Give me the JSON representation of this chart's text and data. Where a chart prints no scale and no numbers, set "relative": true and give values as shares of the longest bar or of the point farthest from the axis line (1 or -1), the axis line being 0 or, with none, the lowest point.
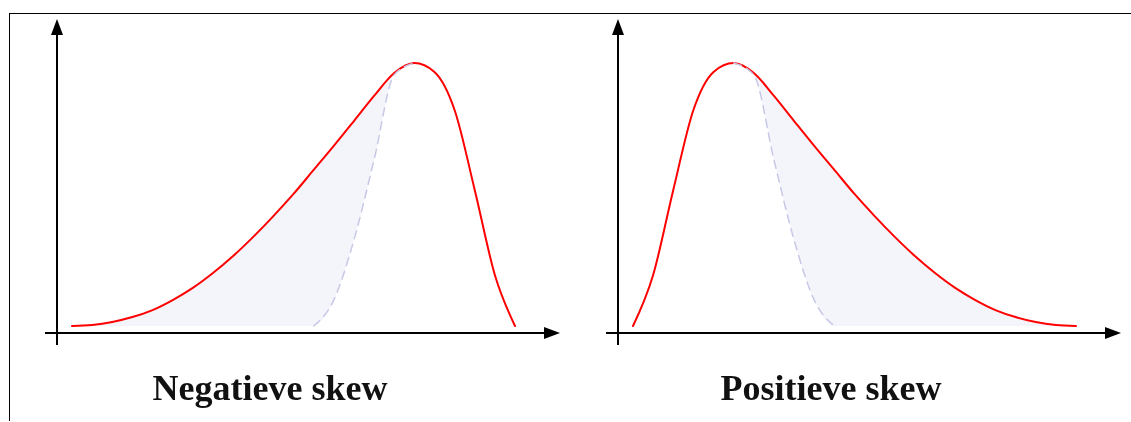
{
  "chart_data": [
    {
      "type": "line",
      "title": "Negatieve skew",
      "relative": true,
      "categories": [
        null,
        null,
        null,
        null,
        null,
        null,
        null,
        null,
        null,
        null,
        null,
        null,
        null,
        null,
        null,
        null,
        null,
        null,
        null,
        null,
        null,
        null,
        null
      ],
      "series": [
        {
          "color": "#ff0000",
          "line_style": "solid",
          "values": [
            0.026,
            0.03,
            0.041,
            0.059,
            0.085,
            0.122,
            0.167,
            0.222,
            0.285,
            0.356,
            0.433,
            0.515,
            0.604,
            0.693,
            0.785,
            0.878,
            0.963,
            1,
            0.967,
            0.826,
            0.53,
            0.215,
            0.026
          ],
          "lower": [
            0.026,
            0.026,
            0.026,
            0.026,
            0.026,
            0.026,
            0.026,
            0.026,
            0.026,
            0.026,
            0.026,
            0.026,
            0.026,
            0.122,
            0.344,
            0.641,
            0.956,
            1,
            null,
            null,
            null,
            null,
            null
          ],
          "upper": [
            0.026,
            0.03,
            0.041,
            0.059,
            0.085,
            0.122,
            0.167,
            0.222,
            0.285,
            0.356,
            0.433,
            0.515,
            0.604,
            0.693,
            0.785,
            0.878,
            0.963,
            1,
            null,
            null,
            null,
            null,
            null
          ]
        },
        {
          "color": "#c8c8e6",
          "line_style": "dashed",
          "values": [
            null,
            null,
            null,
            null,
            null,
            null,
            null,
            null,
            null,
            null,
            null,
            null,
            0.026,
            0.122,
            0.344,
            0.641,
            0.956,
            1,
            null,
            null,
            null,
            null,
            null
          ]
        }
      ]
    },
    {
      "type": "line",
      "title": "Positieve skew",
      "relative": true,
      "categories": [
        null,
        null,
        null,
        null,
        null,
        null,
        null,
        null,
        null,
        null,
        null,
        null,
        null,
        null,
        null,
        null,
        null,
        null,
        null,
        null,
        null,
        null,
        null
      ],
      "series": [
        {
          "color": "#ff0000",
          "line_style": "solid",
          "values": [
            0.026,
            0.215,
            0.53,
            0.826,
            0.967,
            1,
            0.963,
            0.878,
            0.785,
            0.693,
            0.604,
            0.515,
            0.433,
            0.356,
            0.285,
            0.222,
            0.167,
            0.122,
            0.085,
            0.059,
            0.041,
            0.03,
            0.026
          ],
          "lower": [
            null,
            null,
            null,
            null,
            null,
            1,
            0.956,
            0.641,
            0.344,
            0.122,
            0.026,
            0.026,
            0.026,
            0.026,
            0.026,
            0.026,
            0.026,
            0.026,
            0.026,
            0.026,
            0.026,
            0.026,
            0.026
          ],
          "upper": [
            null,
            null,
            null,
            null,
            null,
            1,
            0.963,
            0.878,
            0.785,
            0.693,
            0.604,
            0.515,
            0.433,
            0.356,
            0.285,
            0.222,
            0.167,
            0.122,
            0.085,
            0.059,
            0.041,
            0.03,
            0.026
          ]
        },
        {
          "color": "#c8c8e6",
          "line_style": "dashed",
          "values": [
            null,
            null,
            null,
            null,
            null,
            1,
            0.956,
            0.641,
            0.344,
            0.122,
            0.026,
            null,
            null,
            null,
            null,
            null,
            null,
            null,
            null,
            null,
            null,
            null,
            null
          ]
        }
      ]
    }
  ]
}
